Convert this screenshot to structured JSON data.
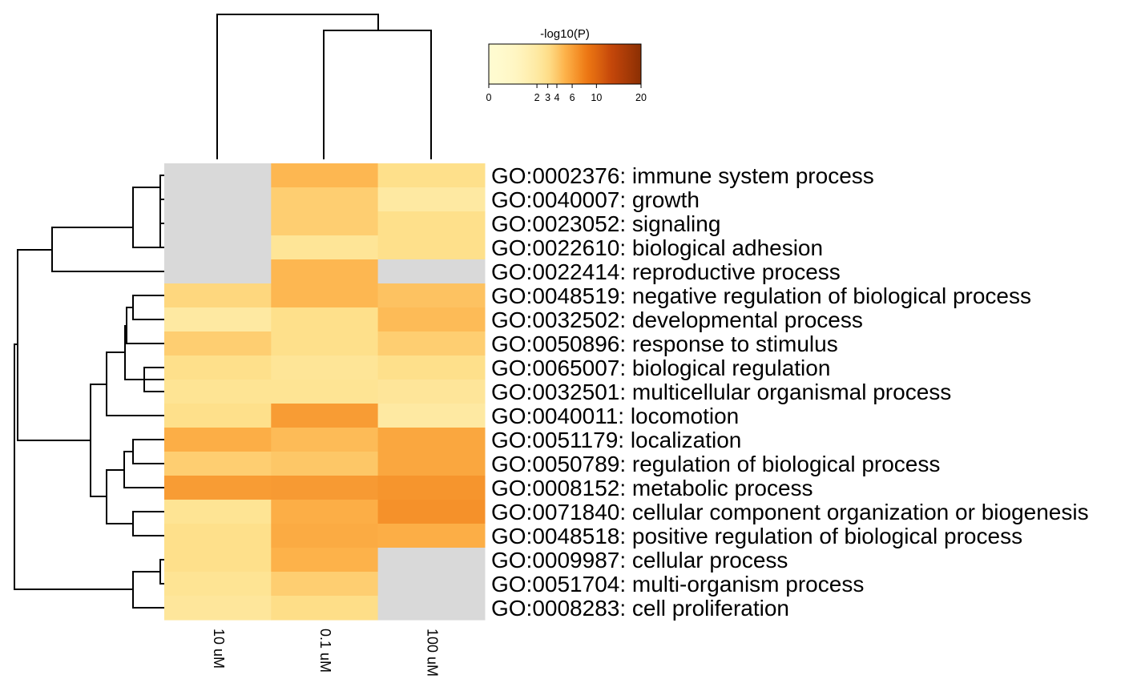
{
  "chart_data": {
    "type": "heatmap",
    "title": "",
    "colorbar": {
      "title": "-log10(P)",
      "ticks": [
        0,
        2,
        3,
        4,
        6,
        10,
        20
      ],
      "range": [
        0,
        20
      ],
      "colors": [
        "#d9d9d9",
        "#fffbd0",
        "#fee08b",
        "#fdb24a",
        "#f07b14",
        "#c4460a",
        "#8a2f03"
      ]
    },
    "columns": [
      "10 uM",
      "0.1 uM",
      "100 uM"
    ],
    "rows": [
      "GO:0002376: immune system process",
      "GO:0040007: growth",
      "GO:0023052: signaling",
      "GO:0022610: biological adhesion",
      "GO:0022414: reproductive process",
      "GO:0048519: negative regulation of biological process",
      "GO:0032502: developmental process",
      "GO:0050896: response to stimulus",
      "GO:0065007: biological regulation",
      "GO:0032501: multicellular organismal process",
      "GO:0040011: locomotion",
      "GO:0051179: localization",
      "GO:0050789: regulation of biological process",
      "GO:0008152: metabolic process",
      "GO:0071840: cellular component organization or biogenesis",
      "GO:0048518: positive regulation of biological process",
      "GO:0009987: cellular process",
      "GO:0051704: multi-organism process",
      "GO:0008283: cell proliferation"
    ],
    "values": [
      [
        null,
        4.8,
        3.0
      ],
      [
        null,
        3.8,
        2.0
      ],
      [
        null,
        3.8,
        3.0
      ],
      [
        null,
        2.5,
        3.0
      ],
      [
        null,
        4.8,
        null
      ],
      [
        3.4,
        4.8,
        4.3
      ],
      [
        2.0,
        3.0,
        4.6
      ],
      [
        3.8,
        3.0,
        3.8
      ],
      [
        3.0,
        2.5,
        3.0
      ],
      [
        2.6,
        2.6,
        2.4
      ],
      [
        3.0,
        6.2,
        2.0
      ],
      [
        5.2,
        4.6,
        5.6
      ],
      [
        3.8,
        4.1,
        5.6
      ],
      [
        6.2,
        6.3,
        6.6
      ],
      [
        2.6,
        5.2,
        6.8
      ],
      [
        3.0,
        5.4,
        5.2
      ],
      [
        3.0,
        5.0,
        null
      ],
      [
        2.6,
        3.8,
        null
      ],
      [
        2.3,
        3.1,
        null
      ]
    ]
  }
}
